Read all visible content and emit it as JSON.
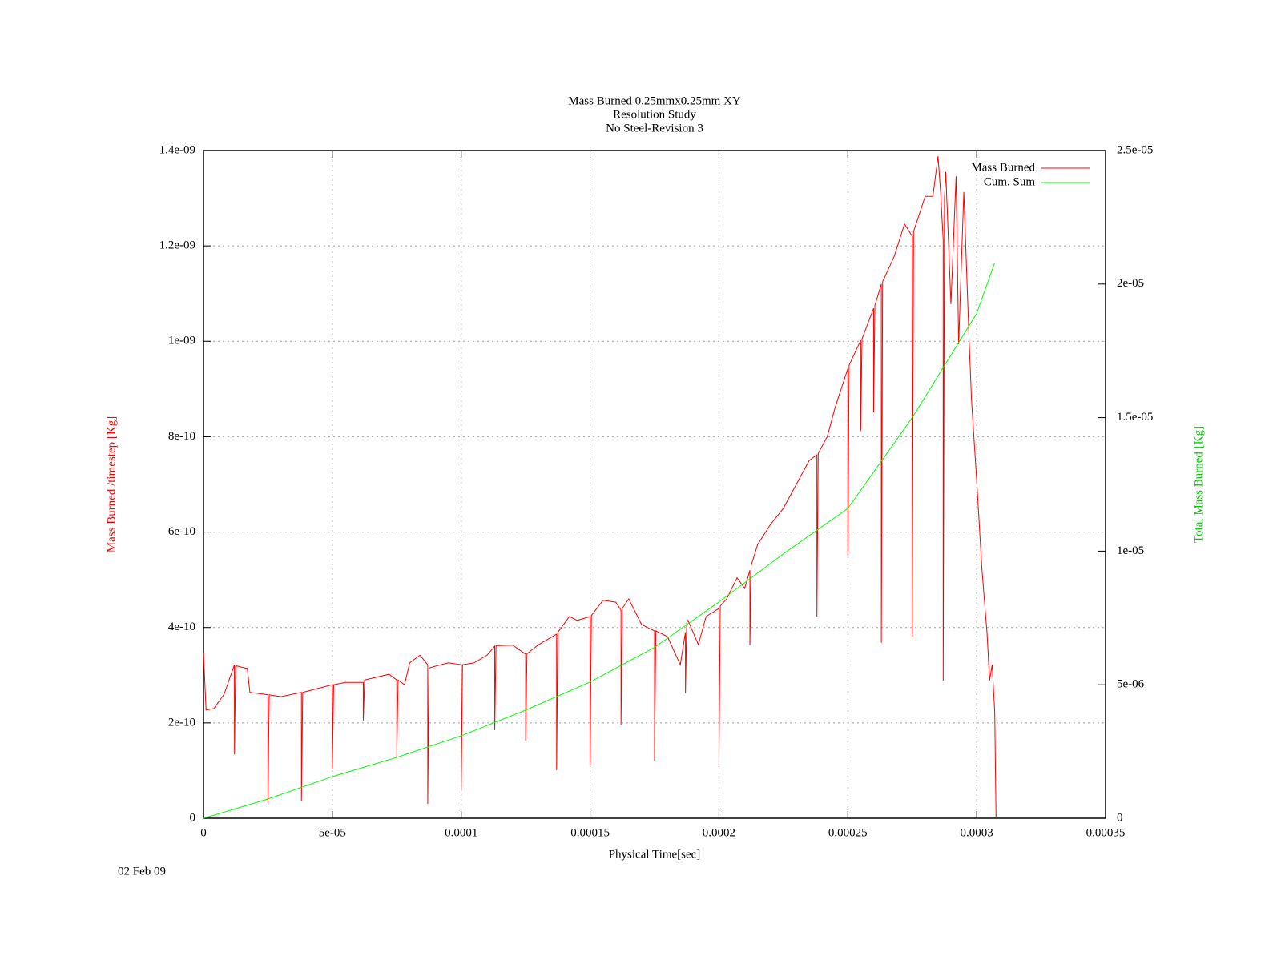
{
  "chart_data": {
    "type": "line",
    "title": [
      "Mass Burned 0.25mmx0.25mm XY",
      "Resolution Study",
      "No Steel-Revision 3"
    ],
    "xlabel": "Physical Time[sec]",
    "ylabel": "Mass Burned /timestep  [Kg]",
    "y2label": "Total Mass Burned [Kg]",
    "annotation": "02 Feb 09",
    "grid": true,
    "legend": "top-right",
    "xlim": [
      0,
      0.00035
    ],
    "xticks": [
      0,
      {
        "value": 5e-05,
        "label": "5e-05"
      },
      0.0001,
      0.00015,
      0.0002,
      0.00025,
      0.0003,
      0.00035
    ],
    "ylim": [
      0,
      1.4e-09
    ],
    "yticks": [
      0,
      {
        "value": 2e-10,
        "label": "2e-10"
      },
      {
        "value": 4e-10,
        "label": "4e-10"
      },
      {
        "value": 6e-10,
        "label": "6e-10"
      },
      {
        "value": 8e-10,
        "label": "8e-10"
      },
      {
        "value": 1e-09,
        "label": "1e-09"
      },
      {
        "value": 1.2e-09,
        "label": "1.2e-09"
      },
      {
        "value": 1.4e-09,
        "label": "1.4e-09"
      }
    ],
    "y2lim": [
      0,
      2.5e-05
    ],
    "y2ticks": [
      0,
      {
        "value": 5e-06,
        "label": "5e-06"
      },
      {
        "value": 1e-05,
        "label": "1e-05"
      },
      {
        "value": 1.5e-05,
        "label": "1.5e-05"
      },
      {
        "value": 2e-05,
        "label": "2e-05"
      },
      {
        "value": 2.5e-05,
        "label": "2.5e-05"
      }
    ],
    "series": [
      {
        "name": "Mass Burned",
        "color": "#ff0000",
        "axis": "y",
        "x": [
          0,
          1e-06,
          4e-06,
          8e-06,
          1.2e-05,
          1.2e-05,
          1.25e-05,
          1.7e-05,
          1.8e-05,
          2.5e-05,
          2.5e-05,
          2.55e-05,
          3e-05,
          3.8e-05,
          3.8e-05,
          3.85e-05,
          5e-05,
          5e-05,
          5.05e-05,
          5.5e-05,
          6.2e-05,
          6.2e-05,
          6.25e-05,
          7.2e-05,
          7.5e-05,
          7.5e-05,
          7.55e-05,
          7.8e-05,
          8e-05,
          8.4e-05,
          8.7e-05,
          8.7e-05,
          8.75e-05,
          9e-05,
          9.5e-05,
          0.0001,
          0.0001,
          0.0001005,
          0.000105,
          0.00011,
          0.000113,
          0.000113,
          0.0001135,
          0.00012,
          0.000125,
          0.000125,
          0.0001255,
          0.00013,
          0.000137,
          0.000137,
          0.0001375,
          0.000142,
          0.000145,
          0.00015,
          0.00015,
          0.0001505,
          0.000155,
          0.00016,
          0.000162,
          0.000162,
          0.0001625,
          0.000165,
          0.00017,
          0.000175,
          0.000175,
          0.0001755,
          0.00018,
          0.000185,
          0.000187,
          0.000187,
          0.0001875,
          0.000188,
          0.000192,
          0.000195,
          0.0002,
          0.0002,
          0.0002005,
          0.000203,
          0.000207,
          0.00021,
          0.000212,
          0.000212,
          0.0002125,
          0.000215,
          0.00022,
          0.000225,
          0.00023,
          0.000235,
          0.000238,
          0.000238,
          0.0002385,
          0.000242,
          0.000245,
          0.00025,
          0.00025,
          0.0002505,
          0.000255,
          0.000255,
          0.0002555,
          0.00026,
          0.00026,
          0.0002605,
          0.000263,
          0.000263,
          0.0002635,
          0.000268,
          0.000272,
          0.000275,
          0.000275,
          0.0002755,
          0.000278,
          0.00028,
          0.000283,
          0.000285,
          0.000286,
          0.000287,
          0.000287,
          0.0002875,
          0.000288,
          0.00029,
          0.000292,
          0.000293,
          0.000295,
          0.000297,
          0.000298,
          0.0003,
          0.000302,
          0.000304,
          0.000305,
          0.000306,
          0.000307,
          0.0003075
        ],
        "values": [
          3.47e-10,
          2.27e-10,
          2.3e-10,
          2.6e-10,
          3.22e-10,
          1.34e-10,
          3.2e-10,
          3.14e-10,
          2.64e-10,
          2.59e-10,
          3.2e-11,
          2.59e-10,
          2.55e-10,
          2.64e-10,
          3.7e-11,
          2.64e-10,
          2.8e-10,
          1.04e-10,
          2.8e-10,
          2.85e-10,
          2.85e-10,
          2.05e-10,
          2.9e-10,
          3.02e-10,
          2.9e-10,
          1.29e-10,
          2.9e-10,
          2.8e-10,
          3.26e-10,
          3.42e-10,
          3.22e-10,
          3e-11,
          3.15e-10,
          3.19e-10,
          3.26e-10,
          3.22e-10,
          5.9e-11,
          3.22e-10,
          3.26e-10,
          3.42e-10,
          3.61e-10,
          1.85e-10,
          3.62e-10,
          3.63e-10,
          3.44e-10,
          1.63e-10,
          3.45e-10,
          3.64e-10,
          3.86e-10,
          1.01e-10,
          3.9e-10,
          4.23e-10,
          4.15e-10,
          4.23e-10,
          1.12e-10,
          4.25e-10,
          4.57e-10,
          4.53e-10,
          4.36e-10,
          1.96e-10,
          4.4e-10,
          4.6e-10,
          4.06e-10,
          3.93e-10,
          1.21e-10,
          3.93e-10,
          3.81e-10,
          3.22e-10,
          3.9e-10,
          2.62e-10,
          4.1e-10,
          4.15e-10,
          3.64e-10,
          4.23e-10,
          4.4e-10,
          1.12e-10,
          4.45e-10,
          4.6e-10,
          5.04e-10,
          4.82e-10,
          5.2e-10,
          3.63e-10,
          5.3e-10,
          5.74e-10,
          6.16e-10,
          6.5e-10,
          7e-10,
          7.5e-10,
          7.62e-10,
          4.23e-10,
          7.65e-10,
          8e-10,
          8.6e-10,
          9.43e-10,
          5.52e-10,
          9.5e-10,
          1.002e-09,
          8.12e-10,
          1.005e-09,
          1.069e-09,
          8.51e-10,
          1.075e-09,
          1.12e-09,
          3.68e-10,
          1.125e-09,
          1.178e-09,
          1.246e-09,
          1.22e-09,
          3.81e-10,
          1.23e-09,
          1.271e-09,
          1.304e-09,
          1.304e-09,
          1.388e-09,
          1.313e-09,
          1.212e-09,
          2.89e-10,
          1.3e-09,
          1.355e-09,
          1.078e-09,
          1.346e-09,
          9.94e-10,
          1.313e-09,
          1.01e-09,
          8.76e-10,
          7.08e-10,
          5.24e-10,
          3.89e-10,
          2.89e-10,
          3.22e-10,
          2.22e-10,
          3e-12
        ]
      },
      {
        "name": "Cum. Sum",
        "color": "#00ff00",
        "axis": "y2",
        "x": [
          0,
          2.5e-05,
          5e-05,
          7.5e-05,
          0.0001,
          0.000125,
          0.00015,
          0.000175,
          0.0002,
          0.000225,
          0.00025,
          0.000275,
          0.0003,
          0.000307
        ],
        "values": [
          0,
          7.2e-07,
          1.56e-06,
          2.28e-06,
          3.09e-06,
          4.05e-06,
          5.1e-06,
          6.4e-06,
          8.1e-06,
          9.9e-06,
          1.16e-05,
          1.5e-05,
          1.89e-05,
          2.08e-05
        ]
      }
    ]
  }
}
